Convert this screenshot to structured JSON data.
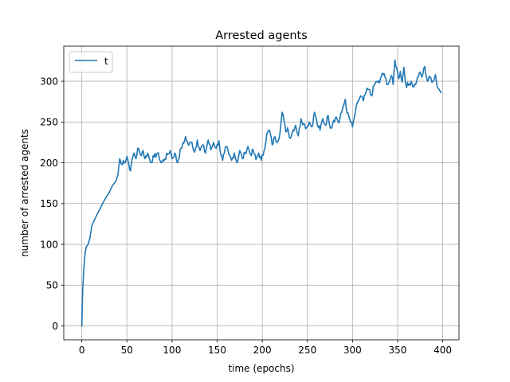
{
  "chart_data": {
    "type": "line",
    "title": "Arrested agents",
    "xlabel": "time (epochs)",
    "ylabel": "number of arrested agents",
    "xlim": [
      -20,
      418
    ],
    "ylim": [
      -17,
      343
    ],
    "xticks": [
      0,
      50,
      100,
      150,
      200,
      250,
      300,
      350,
      400
    ],
    "yticks": [
      0,
      50,
      100,
      150,
      200,
      250,
      300
    ],
    "grid": true,
    "legend_position": "top-left",
    "series": [
      {
        "name": "t",
        "color": "#1f77b4",
        "keypoints": [
          [
            0,
            0
          ],
          [
            1,
            45
          ],
          [
            2,
            65
          ],
          [
            3,
            82
          ],
          [
            4,
            92
          ],
          [
            5,
            97
          ],
          [
            7,
            100
          ],
          [
            9,
            108
          ],
          [
            11,
            122
          ],
          [
            13,
            128
          ],
          [
            15,
            132
          ],
          [
            17,
            137
          ],
          [
            20,
            143
          ],
          [
            23,
            150
          ],
          [
            26,
            156
          ],
          [
            30,
            163
          ],
          [
            34,
            172
          ],
          [
            38,
            178
          ],
          [
            40,
            185
          ],
          [
            42,
            205
          ],
          [
            44,
            198
          ],
          [
            46,
            203
          ],
          [
            48,
            200
          ],
          [
            50,
            208
          ],
          [
            52,
            199
          ],
          [
            54,
            190
          ],
          [
            56,
            205
          ],
          [
            58,
            212
          ],
          [
            60,
            205
          ],
          [
            62,
            218
          ],
          [
            65,
            210
          ],
          [
            68,
            215
          ],
          [
            70,
            205
          ],
          [
            73,
            212
          ],
          [
            76,
            201
          ],
          [
            80,
            207
          ],
          [
            84,
            212
          ],
          [
            88,
            200
          ],
          [
            92,
            205
          ],
          [
            95,
            210
          ],
          [
            98,
            215
          ],
          [
            100,
            205
          ],
          [
            103,
            212
          ],
          [
            106,
            200
          ],
          [
            110,
            218
          ],
          [
            113,
            224
          ],
          [
            115,
            232
          ],
          [
            118,
            222
          ],
          [
            122,
            225
          ],
          [
            125,
            213
          ],
          [
            128,
            228
          ],
          [
            131,
            215
          ],
          [
            134,
            222
          ],
          [
            137,
            212
          ],
          [
            140,
            228
          ],
          [
            143,
            216
          ],
          [
            146,
            225
          ],
          [
            149,
            218
          ],
          [
            152,
            227
          ],
          [
            154,
            210
          ],
          [
            156,
            203
          ],
          [
            158,
            212
          ],
          [
            160,
            220
          ],
          [
            163,
            210
          ],
          [
            166,
            203
          ],
          [
            169,
            212
          ],
          [
            172,
            200
          ],
          [
            175,
            215
          ],
          [
            178,
            205
          ],
          [
            181,
            212
          ],
          [
            184,
            220
          ],
          [
            187,
            210
          ],
          [
            190,
            215
          ],
          [
            193,
            204
          ],
          [
            196,
            212
          ],
          [
            199,
            203
          ],
          [
            202,
            215
          ],
          [
            205,
            235
          ],
          [
            208,
            240
          ],
          [
            211,
            222
          ],
          [
            214,
            232
          ],
          [
            217,
            226
          ],
          [
            220,
            240
          ],
          [
            222,
            262
          ],
          [
            224,
            252
          ],
          [
            226,
            238
          ],
          [
            228,
            243
          ],
          [
            231,
            230
          ],
          [
            234,
            240
          ],
          [
            237,
            246
          ],
          [
            240,
            233
          ],
          [
            243,
            254
          ],
          [
            246,
            248
          ],
          [
            249,
            243
          ],
          [
            252,
            250
          ],
          [
            255,
            244
          ],
          [
            258,
            262
          ],
          [
            261,
            247
          ],
          [
            264,
            240
          ],
          [
            267,
            254
          ],
          [
            270,
            246
          ],
          [
            273,
            258
          ],
          [
            276,
            242
          ],
          [
            279,
            252
          ],
          [
            282,
            256
          ],
          [
            285,
            249
          ],
          [
            288,
            262
          ],
          [
            290,
            270
          ],
          [
            292,
            278
          ],
          [
            294,
            261
          ],
          [
            297,
            253
          ],
          [
            300,
            244
          ],
          [
            303,
            261
          ],
          [
            306,
            275
          ],
          [
            309,
            282
          ],
          [
            312,
            276
          ],
          [
            315,
            287
          ],
          [
            318,
            290
          ],
          [
            321,
            282
          ],
          [
            324,
            295
          ],
          [
            327,
            300
          ],
          [
            330,
            298
          ],
          [
            333,
            310
          ],
          [
            336,
            305
          ],
          [
            339,
            296
          ],
          [
            341,
            300
          ],
          [
            343,
            307
          ],
          [
            345,
            296
          ],
          [
            347,
            326
          ],
          [
            349,
            316
          ],
          [
            351,
            303
          ],
          [
            353,
            312
          ],
          [
            355,
            299
          ],
          [
            357,
            317
          ],
          [
            359,
            296
          ],
          [
            362,
            295
          ],
          [
            365,
            300
          ],
          [
            368,
            293
          ],
          [
            371,
            300
          ],
          [
            374,
            310
          ],
          [
            377,
            305
          ],
          [
            380,
            318
          ],
          [
            383,
            300
          ],
          [
            386,
            305
          ],
          [
            389,
            300
          ],
          [
            392,
            308
          ],
          [
            394,
            293
          ],
          [
            396,
            290
          ],
          [
            398,
            286
          ]
        ]
      }
    ]
  }
}
